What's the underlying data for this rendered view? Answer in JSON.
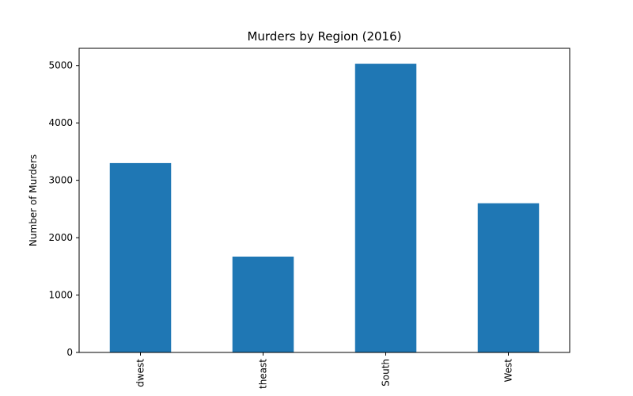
{
  "chart_data": {
    "type": "bar",
    "title": "Murders by Region (2016)",
    "xlabel": "",
    "ylabel": "Number of Murders",
    "categories": [
      "Midwest",
      "Northeast",
      "South",
      "West"
    ],
    "category_labels_visible": [
      "dwest",
      "theast",
      "South",
      "West"
    ],
    "values": [
      3300,
      1670,
      5030,
      2600
    ],
    "ylim": [
      0,
      5300
    ],
    "yticks": [
      0,
      1000,
      2000,
      3000,
      4000,
      5000
    ],
    "bar_color": "#1f77b4",
    "grid": false,
    "legend": "none"
  }
}
